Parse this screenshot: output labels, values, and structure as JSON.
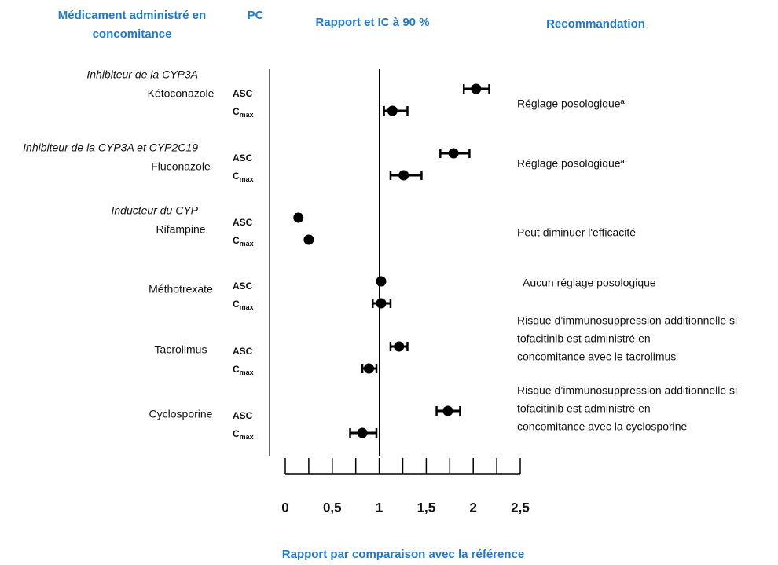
{
  "chart_data": {
    "type": "forest",
    "headers": {
      "drug": [
        "Médicament administré en",
        "concomitance"
      ],
      "pk": "PC",
      "ratio": "Rapport et IC à 90 %",
      "recommendation": "Recommandation"
    },
    "xlabel": "Rapport par comparaison avec la référence",
    "xlim": [
      0,
      2.5
    ],
    "xticks": [
      0,
      {
        "value": 0.5,
        "label": "0,5"
      },
      1,
      {
        "value": 1.5,
        "label": "1,5"
      },
      2,
      {
        "value": 2.5,
        "label": "2,5"
      }
    ],
    "xminor_ticks": [
      0.25,
      0.75,
      1.25,
      1.75,
      2.25
    ],
    "reference_line": 1,
    "color": "#000000",
    "parameters": [
      {
        "text": "ASC"
      },
      {
        "text": "C",
        "sub": "max"
      }
    ],
    "drugs": [
      {
        "group": "Inhibiteur de la CYP3A",
        "name": "Kétoconazole",
        "values": [
          2.03,
          1.14
        ],
        "ci_low": [
          1.9,
          1.05
        ],
        "ci_high": [
          2.17,
          1.3
        ],
        "recommendation": [
          "Réglage posologiqueª"
        ]
      },
      {
        "group": "Inhibiteur de la CYP3A et CYP2C19",
        "name": "Fluconazole",
        "values": [
          1.79,
          1.26
        ],
        "ci_low": [
          1.65,
          1.12
        ],
        "ci_high": [
          1.96,
          1.45
        ],
        "recommendation": [
          "Réglage posologiqueª"
        ]
      },
      {
        "group": "Inducteur du CYP",
        "name": "Rifampine",
        "values": [
          0.14,
          0.25
        ],
        "ci_low": [
          0.12,
          0.23
        ],
        "ci_high": [
          0.16,
          0.27
        ],
        "recommendation": [
          "Peut diminuer l'efficacité"
        ]
      },
      {
        "name": "Méthotrexate",
        "values": [
          1.02,
          1.02
        ],
        "ci_low": [
          1.0,
          0.93
        ],
        "ci_high": [
          1.04,
          1.12
        ],
        "recommendation": [
          "Aucun réglage posologique"
        ]
      },
      {
        "name": "Tacrolimus",
        "values": [
          1.21,
          0.89
        ],
        "ci_low": [
          1.12,
          0.82
        ],
        "ci_high": [
          1.3,
          0.97
        ],
        "recommendation": [
          "Risque d’immunosuppression additionnelle si",
          "tofacitinib est administré en",
          "concomitance avec le tacrolimus"
        ]
      },
      {
        "name": "Cyclosporine",
        "values": [
          1.73,
          0.82
        ],
        "ci_low": [
          1.61,
          0.69
        ],
        "ci_high": [
          1.86,
          0.97
        ],
        "recommendation": [
          "Risque d’immunosuppression additionnelle si",
          " tofacitinib est administré en",
          "concomitance avec la cyclosporine"
        ]
      }
    ]
  }
}
